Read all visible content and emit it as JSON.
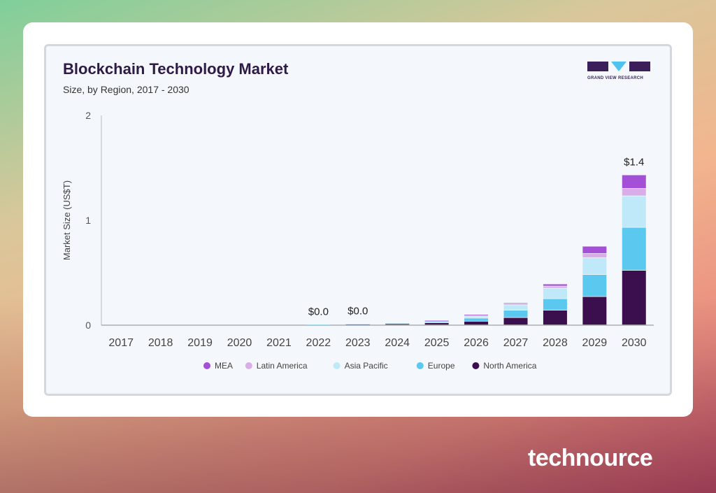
{
  "header": {
    "title": "Blockchain Technology Market",
    "subtitle": "Size, by Region, 2017 - 2030",
    "logo_text": "GRAND VIEW RESEARCH"
  },
  "footer": {
    "brand": "technource"
  },
  "chart_data": {
    "type": "bar",
    "stacked": true,
    "title": "Blockchain Technology Market",
    "subtitle": "Size, by Region, 2017 - 2030",
    "xlabel": "",
    "ylabel": "Market Size (US$T)",
    "ylim": [
      0,
      2
    ],
    "yticks": [
      0,
      1,
      2
    ],
    "grid": false,
    "legend": "bottom",
    "categories": [
      "2017",
      "2018",
      "2019",
      "2020",
      "2021",
      "2022",
      "2023",
      "2024",
      "2025",
      "2026",
      "2027",
      "2028",
      "2029",
      "2030"
    ],
    "series": [
      {
        "name": "North America",
        "color": "#3b0f4d",
        "values": [
          0,
          0,
          0,
          0,
          0,
          0.002,
          0.008,
          0.013,
          0.02,
          0.035,
          0.07,
          0.14,
          0.27,
          0.52
        ]
      },
      {
        "name": "Europe",
        "color": "#5bc8f0",
        "values": [
          0,
          0,
          0,
          0,
          0,
          0.001,
          0.002,
          0.003,
          0.01,
          0.03,
          0.07,
          0.11,
          0.21,
          0.41
        ]
      },
      {
        "name": "Asia Pacific",
        "color": "#bfe8f8",
        "values": [
          0,
          0,
          0,
          0,
          0,
          0,
          0.001,
          0.002,
          0.01,
          0.02,
          0.05,
          0.1,
          0.16,
          0.3
        ]
      },
      {
        "name": "Latin America",
        "color": "#d9aee8",
        "values": [
          0,
          0,
          0,
          0,
          0,
          0,
          0,
          0,
          0.002,
          0.01,
          0.01,
          0.02,
          0.04,
          0.07
        ]
      },
      {
        "name": "MEA",
        "color": "#a34fd6",
        "values": [
          0,
          0,
          0,
          0,
          0,
          0,
          0,
          0,
          0.001,
          0.005,
          0.01,
          0.02,
          0.07,
          0.13
        ]
      }
    ],
    "data_labels": [
      {
        "category": "2022",
        "text": "$0.0"
      },
      {
        "category": "2023",
        "text": "$0.0"
      },
      {
        "category": "2030",
        "text": "$1.4"
      }
    ],
    "legend_order": [
      "MEA",
      "Latin America",
      "Asia Pacific",
      "Europe",
      "North America"
    ]
  }
}
